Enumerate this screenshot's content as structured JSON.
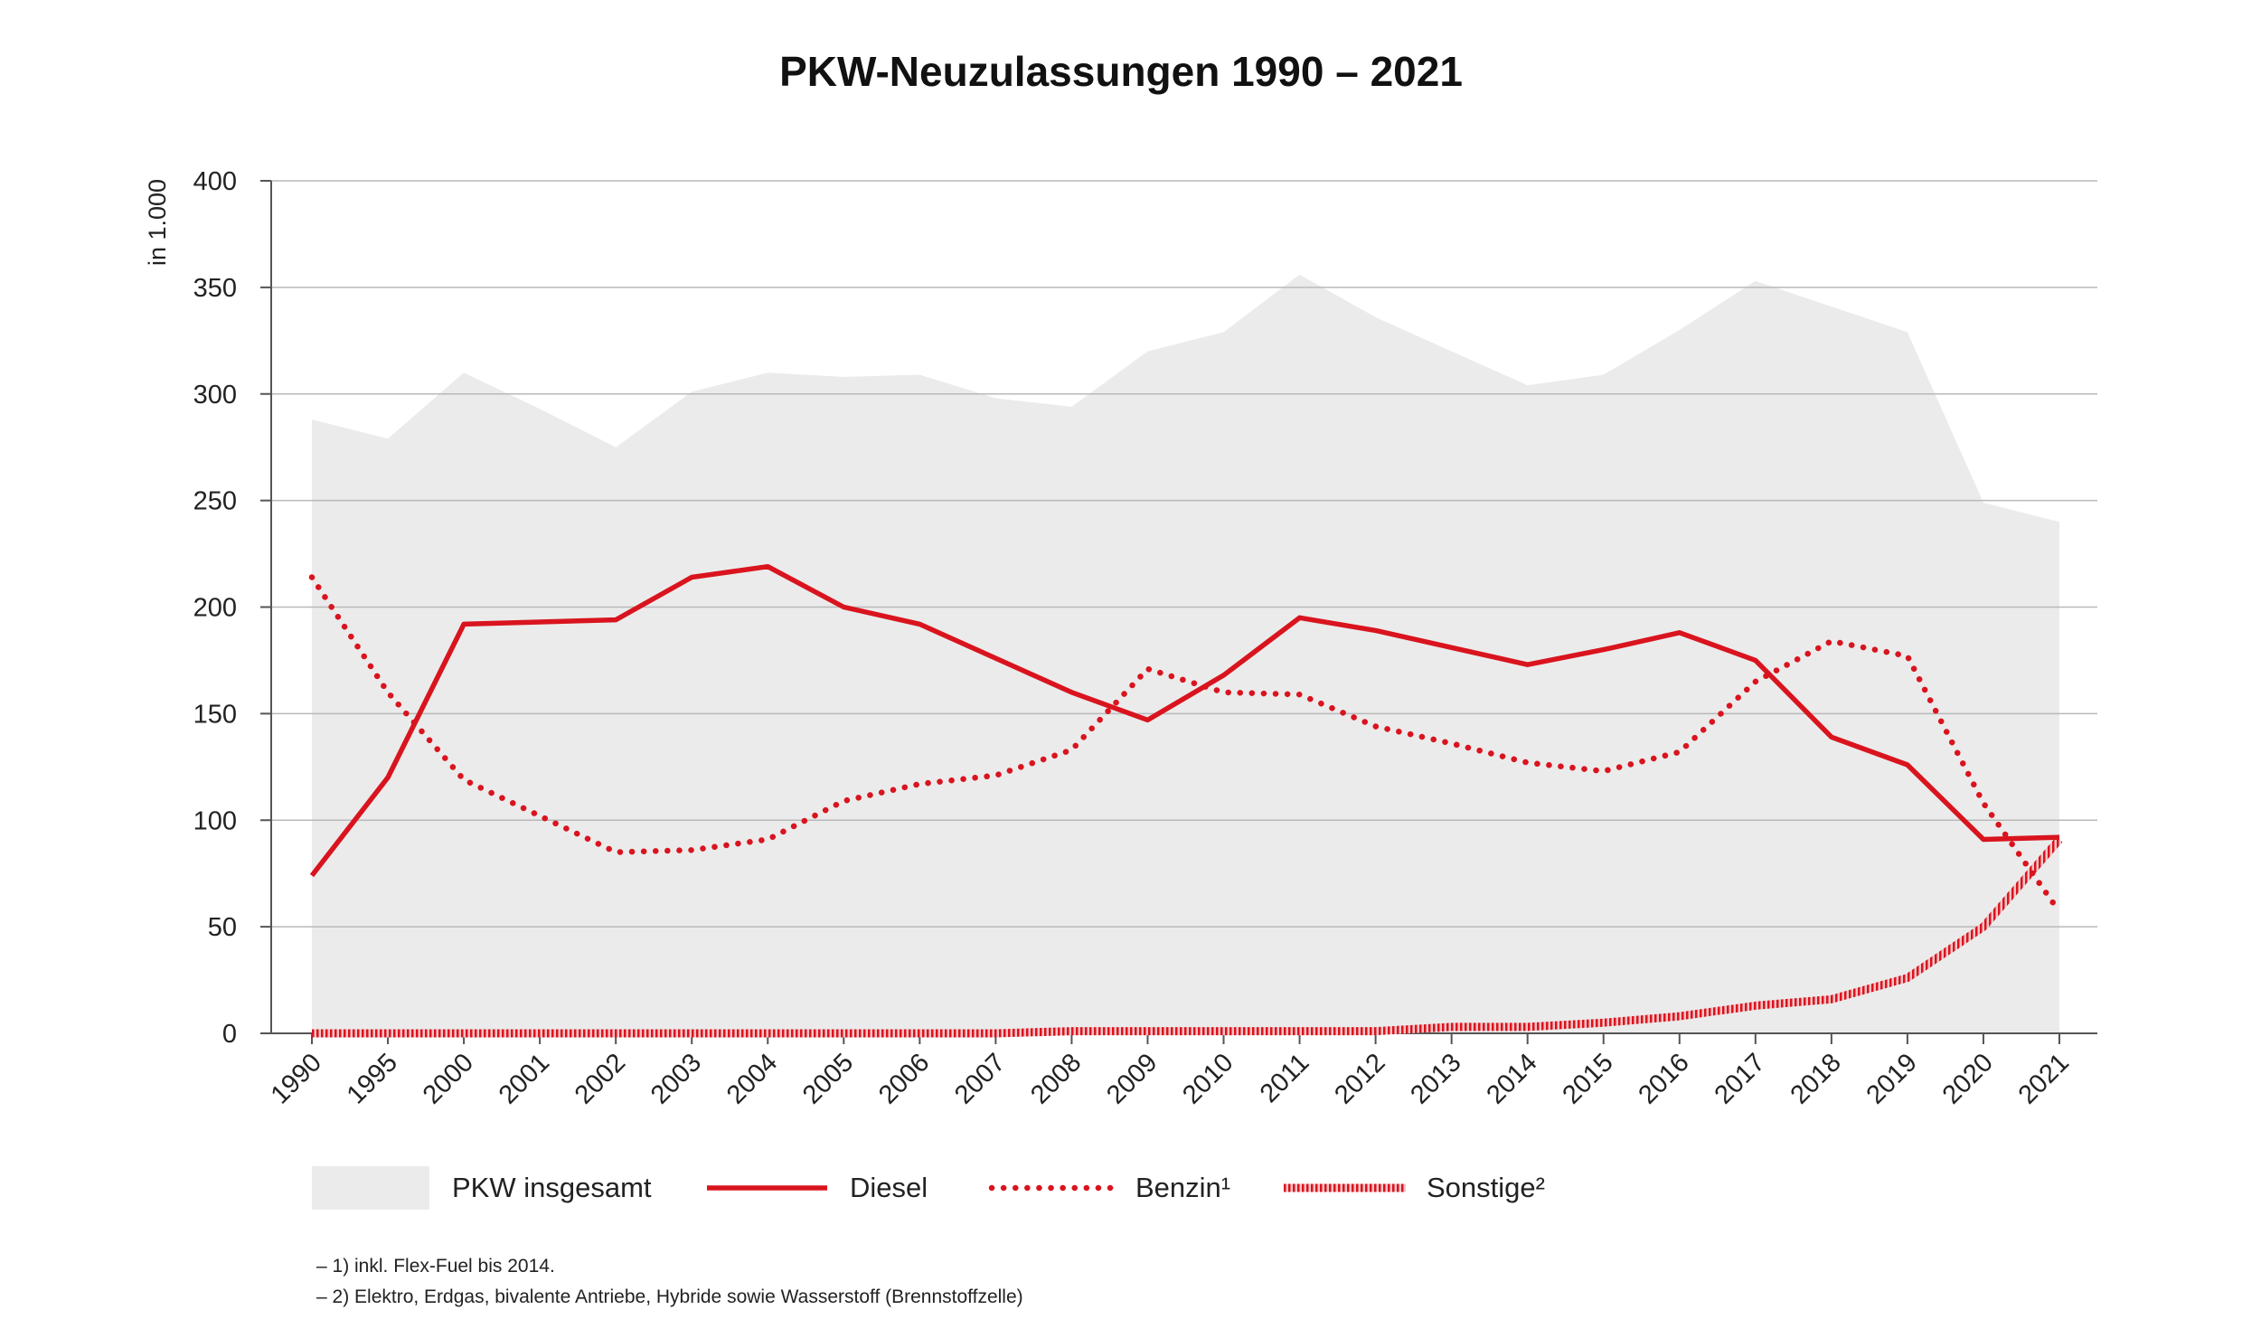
{
  "chart_data": {
    "type": "area",
    "title": "PKW-Neuzulassungen 1990 – 2021",
    "ylabel": "in 1.000",
    "xlabel": "",
    "ylim": [
      0,
      400
    ],
    "y_ticks": [
      0,
      50,
      100,
      150,
      200,
      250,
      300,
      350,
      400
    ],
    "grid": true,
    "legend_position": "bottom",
    "categories": [
      "1990",
      "1995",
      "2000",
      "2001",
      "2002",
      "2003",
      "2004",
      "2005",
      "2006",
      "2007",
      "2008",
      "2009",
      "2010",
      "2011",
      "2012",
      "2013",
      "2014",
      "2015",
      "2016",
      "2017",
      "2018",
      "2019",
      "2020",
      "2021"
    ],
    "series": [
      {
        "name": "PKW insgesamt",
        "style": "area",
        "color": "#ebebeb",
        "values": [
          288,
          279,
          310,
          293,
          275,
          301,
          310,
          308,
          309,
          298,
          294,
          320,
          329,
          356,
          336,
          320,
          304,
          309,
          330,
          353,
          341,
          329,
          249,
          240
        ]
      },
      {
        "name": "Diesel",
        "style": "solid",
        "color": "#d9141e",
        "values": [
          74,
          120,
          192,
          193,
          194,
          214,
          219,
          200,
          192,
          176,
          160,
          147,
          168,
          195,
          189,
          181,
          173,
          180,
          188,
          175,
          139,
          126,
          91,
          92
        ]
      },
      {
        "name": "Benzin¹",
        "style": "dotted",
        "color": "#d9141e",
        "values": [
          214,
          160,
          119,
          102,
          85,
          86,
          91,
          109,
          117,
          121,
          133,
          171,
          160,
          159,
          144,
          136,
          127,
          123,
          132,
          165,
          184,
          177,
          108,
          57
        ]
      },
      {
        "name": "Sonstige²",
        "style": "hatched",
        "color": "#e0737a",
        "values": [
          0,
          0,
          0,
          0,
          0,
          0,
          0,
          0,
          0,
          0,
          1,
          1,
          1,
          1,
          1,
          3,
          3,
          5,
          8,
          13,
          16,
          26,
          50,
          91
        ]
      }
    ]
  },
  "footnotes": [
    "–   1) inkl. Flex-Fuel bis 2014.",
    "–   2) Elektro, Erdgas, bivalente Antriebe, Hybride sowie Wasserstoff (Brennstoffzelle)"
  ]
}
